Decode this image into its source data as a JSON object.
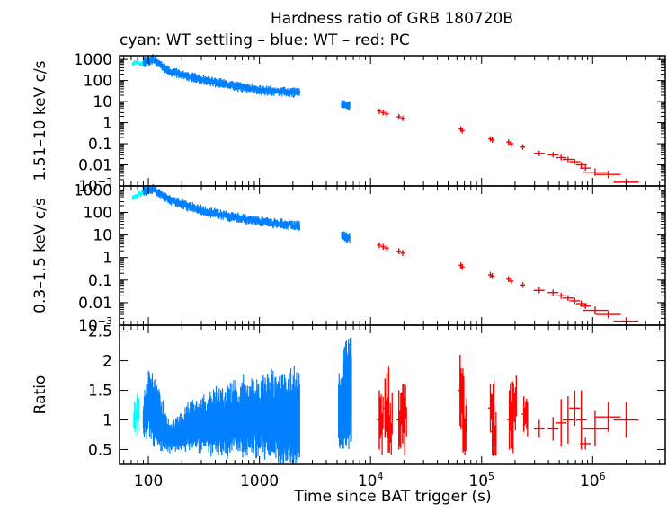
{
  "chart_data": {
    "type": "scatter",
    "title": "Hardness ratio of GRB 180720B",
    "subtitle": "cyan: WT settling – blue: WT – red: PC",
    "xlabel": "Time since BAT trigger (s)",
    "xscale": "log",
    "xlim": [
      55,
      4500000
    ],
    "x_tick_labels": [
      {
        "value": 100,
        "label": "100",
        "sup": ""
      },
      {
        "value": 1000,
        "label": "1000",
        "sup": ""
      },
      {
        "value": 10000,
        "label": "10",
        "sup": "4"
      },
      {
        "value": 100000,
        "label": "10",
        "sup": "5"
      },
      {
        "value": 1000000,
        "label": "10",
        "sup": "6"
      }
    ],
    "series_colors": {
      "wt_settling": "#00ffff",
      "wt": "#0080ff",
      "pc": "#ff0000"
    },
    "panels": [
      {
        "id": "hard",
        "ylabel": "1.51–10 keV c/s",
        "yscale": "log",
        "ylim": [
          0.001,
          1500
        ],
        "y_tick_labels": [
          {
            "value": 1000,
            "label": "1000",
            "sup": ""
          },
          {
            "value": 100,
            "label": "100",
            "sup": ""
          },
          {
            "value": 10,
            "label": "10",
            "sup": ""
          },
          {
            "value": 1,
            "label": "1",
            "sup": ""
          },
          {
            "value": 0.1,
            "label": "0.1",
            "sup": ""
          },
          {
            "value": 0.01,
            "label": "0.01",
            "sup": ""
          },
          {
            "value": 0.001,
            "label": "10",
            "sup": "−3"
          }
        ],
        "settling": {
          "t_start": 72,
          "t_end": 95,
          "rate_start": 600,
          "rate_end": 800
        },
        "wt_segments": [
          {
            "t": [
              90,
              110,
              150,
              300,
              600,
              1000,
              2300
            ],
            "rate": [
              700,
              1000,
              300,
              110,
              55,
              35,
              25
            ]
          },
          {
            "t": [
              5500,
              6500
            ],
            "rate": [
              8,
              6
            ]
          }
        ],
        "pc_points": [
          {
            "t": 12000,
            "rate": 3.5
          },
          {
            "t": 13000,
            "rate": 3.0
          },
          {
            "t": 14000,
            "rate": 2.6
          },
          {
            "t": 18000,
            "rate": 1.9
          },
          {
            "t": 19500,
            "rate": 1.6
          },
          {
            "t": 65000,
            "rate": 0.5
          },
          {
            "t": 67000,
            "rate": 0.42
          },
          {
            "t": 120000,
            "rate": 0.17
          },
          {
            "t": 125000,
            "rate": 0.15
          },
          {
            "t": 175000,
            "rate": 0.12
          },
          {
            "t": 185000,
            "rate": 0.1
          },
          {
            "t": 235000,
            "rate": 0.07
          },
          {
            "t": 330000,
            "rate": 0.035
          },
          {
            "t": 440000,
            "rate": 0.03
          },
          {
            "t": 520000,
            "rate": 0.022
          },
          {
            "t": 600000,
            "rate": 0.018
          },
          {
            "t": 690000,
            "rate": 0.014
          },
          {
            "t": 790000,
            "rate": 0.01
          },
          {
            "t": 860000,
            "rate": 0.007
          },
          {
            "t": 1050000,
            "rate": 0.0045
          },
          {
            "t": 1380000,
            "rate": 0.0035
          },
          {
            "t": 2000000,
            "rate": 0.0015
          }
        ]
      },
      {
        "id": "soft",
        "ylabel": "0.3–1.5 keV c/s",
        "yscale": "log",
        "ylim": [
          0.001,
          1500
        ],
        "y_tick_labels": [
          {
            "value": 1000,
            "label": "1000",
            "sup": ""
          },
          {
            "value": 100,
            "label": "100",
            "sup": ""
          },
          {
            "value": 10,
            "label": "10",
            "sup": ""
          },
          {
            "value": 1,
            "label": "1",
            "sup": ""
          },
          {
            "value": 0.1,
            "label": "0.1",
            "sup": ""
          },
          {
            "value": 0.01,
            "label": "0.01",
            "sup": ""
          },
          {
            "value": 0.001,
            "label": "10",
            "sup": "−3"
          }
        ],
        "settling": {
          "t_start": 72,
          "t_end": 95,
          "rate_start": 500,
          "rate_end": 900
        },
        "wt_segments": [
          {
            "t": [
              90,
              110,
              150,
              300,
              600,
              1000,
              2300
            ],
            "rate": [
              900,
              1100,
              400,
              120,
              60,
              40,
              25
            ]
          },
          {
            "t": [
              5500,
              6500
            ],
            "rate": [
              10,
              7
            ]
          }
        ],
        "pc_points": [
          {
            "t": 12000,
            "rate": 3.5
          },
          {
            "t": 13000,
            "rate": 3.0
          },
          {
            "t": 14000,
            "rate": 2.6
          },
          {
            "t": 18000,
            "rate": 1.9
          },
          {
            "t": 19500,
            "rate": 1.6
          },
          {
            "t": 65000,
            "rate": 0.45
          },
          {
            "t": 67000,
            "rate": 0.38
          },
          {
            "t": 120000,
            "rate": 0.17
          },
          {
            "t": 125000,
            "rate": 0.15
          },
          {
            "t": 175000,
            "rate": 0.11
          },
          {
            "t": 185000,
            "rate": 0.09
          },
          {
            "t": 235000,
            "rate": 0.06
          },
          {
            "t": 330000,
            "rate": 0.035
          },
          {
            "t": 440000,
            "rate": 0.028
          },
          {
            "t": 520000,
            "rate": 0.02
          },
          {
            "t": 600000,
            "rate": 0.016
          },
          {
            "t": 690000,
            "rate": 0.012
          },
          {
            "t": 790000,
            "rate": 0.009
          },
          {
            "t": 860000,
            "rate": 0.007
          },
          {
            "t": 1050000,
            "rate": 0.0045
          },
          {
            "t": 1380000,
            "rate": 0.003
          },
          {
            "t": 2000000,
            "rate": 0.0015
          }
        ]
      },
      {
        "id": "ratio",
        "ylabel": "Ratio",
        "yscale": "linear",
        "ylim": [
          0.25,
          2.6
        ],
        "y_tick_labels": [
          {
            "value": 0.5,
            "label": "0.5",
            "sup": ""
          },
          {
            "value": 1,
            "label": "1",
            "sup": ""
          },
          {
            "value": 1.5,
            "label": "1.5",
            "sup": ""
          },
          {
            "value": 2,
            "label": "2",
            "sup": ""
          },
          {
            "value": 2.5,
            "label": "2.5",
            "sup": ""
          }
        ],
        "settling": {
          "t_start": 74,
          "t_end": 82,
          "ratio_low": 0.7,
          "ratio_high": 1.4
        },
        "wt_profile": {
          "t": [
            90,
            100,
            130,
            160,
            250,
            500,
            1000,
            2300
          ],
          "center": [
            1.0,
            1.3,
            0.9,
            0.7,
            0.9,
            1.0,
            1.05,
            1.05
          ],
          "halfwidth": [
            0.3,
            0.5,
            0.4,
            0.2,
            0.35,
            0.5,
            0.6,
            0.7
          ]
        },
        "wt_late": [
          {
            "t": 5600,
            "low": 0.5,
            "high": 1.8
          },
          {
            "t": 6200,
            "low": 0.5,
            "high": 2.4
          }
        ],
        "pc_points": [
          {
            "t": 12000,
            "ratio": 1.0,
            "err": 0.5
          },
          {
            "t": 13500,
            "ratio": 1.2,
            "err": 0.5
          },
          {
            "t": 14500,
            "ratio": 0.9,
            "err": 0.45
          },
          {
            "t": 18000,
            "ratio": 1.0,
            "err": 0.5
          },
          {
            "t": 19500,
            "ratio": 1.1,
            "err": 0.5
          },
          {
            "t": 64000,
            "ratio": 1.5,
            "err": 0.6
          },
          {
            "t": 68000,
            "ratio": 0.9,
            "err": 0.45
          },
          {
            "t": 120000,
            "ratio": 1.2,
            "err": 0.4
          },
          {
            "t": 125000,
            "ratio": 0.8,
            "err": 0.4
          },
          {
            "t": 178000,
            "ratio": 1.0,
            "err": 0.5
          },
          {
            "t": 190000,
            "ratio": 1.2,
            "err": 0.45
          },
          {
            "t": 240000,
            "ratio": 1.1,
            "err": 0.3
          },
          {
            "t": 330000,
            "ratio": 0.85,
            "err": 0.15
          },
          {
            "t": 440000,
            "ratio": 0.85,
            "err": 0.2
          },
          {
            "t": 520000,
            "ratio": 0.95,
            "err": 0.4
          },
          {
            "t": 600000,
            "ratio": 1.0,
            "err": 0.4
          },
          {
            "t": 690000,
            "ratio": 1.2,
            "err": 0.3
          },
          {
            "t": 790000,
            "ratio": 1.0,
            "err": 0.5
          },
          {
            "t": 860000,
            "ratio": 0.6,
            "err": 0.1
          },
          {
            "t": 1050000,
            "ratio": 0.85,
            "err": 0.3
          },
          {
            "t": 1380000,
            "ratio": 1.05,
            "err": 0.25
          },
          {
            "t": 2000000,
            "ratio": 1.0,
            "err": 0.3
          }
        ]
      }
    ]
  }
}
